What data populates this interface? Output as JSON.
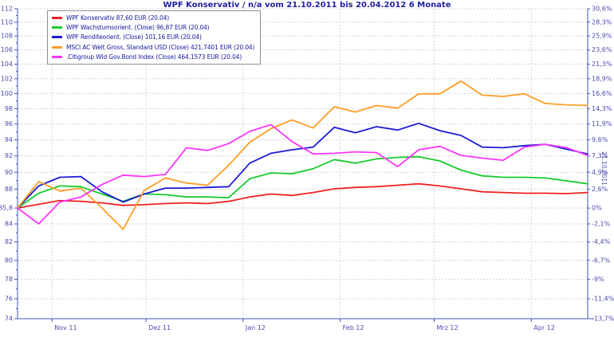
{
  "title": "WPF Konservativ / n/a vom 21.10.2011 bis 20.04.2012 6 Monate",
  "rotated_date_label": "21.10.2011",
  "style": {
    "title_color": "#1f1fa0",
    "axis_color": "#3c50b4",
    "label_color": "#4a4ab0",
    "grid_color": "#d4d4d4",
    "legend_text_color": "#16169b",
    "background": "#ffffff"
  },
  "chart_data": {
    "type": "line",
    "title": "WPF Konservativ / n/a vom 21.10.2011 bis 20.04.2012 6 Monate",
    "start_date": "21.10.2011",
    "end_date": "20.04.2012",
    "period_label": "6 Monate",
    "scale": "log",
    "grid": true,
    "legend_position": "top-left",
    "baseline_price": 85.8,
    "ylim_price": [
      74,
      112
    ],
    "y_gridline_prices": [
      112,
      110,
      108,
      106,
      104,
      102,
      100,
      98,
      96,
      94,
      92,
      90,
      88,
      85.8,
      84,
      82,
      80,
      78,
      76,
      74
    ],
    "y_axis_left_labels": [
      "112",
      "110",
      "108",
      "106",
      "104",
      "102",
      "100",
      "98",
      "96",
      "94",
      "92",
      "90",
      "88",
      "85,8",
      "84",
      "82",
      "80",
      "78",
      "76",
      "74"
    ],
    "y_axis_right_labels": [
      "30,6%",
      "28,3%",
      "25,9%",
      "23,6%",
      "21,3%",
      "18,9%",
      "16,6%",
      "14,3%",
      "11,9%",
      "9,6%",
      "7,3%",
      "4,9%",
      "2,6%",
      "0%",
      "-2,1%",
      "-4,4%",
      "-6,7%",
      "-9%",
      "-11,4%",
      "-13,7%"
    ],
    "x_axis": {
      "tick_labels": [
        "Nov 11",
        "Dez 11",
        "Jan 12",
        "Feb 12",
        "Mrz 12",
        "Apr 12"
      ],
      "tick_day_offsets": [
        11,
        41,
        72,
        103,
        133,
        164
      ],
      "total_days": 182
    },
    "series_unit": "percent_change_from_21.10.2011",
    "series": [
      {
        "name": "WPF Konservativ 87,60 EUR (20.04)",
        "color": "#ee2222",
        "end_value_label": "87,60 EUR",
        "values": [
          0,
          0.5,
          1.0,
          0.9,
          0.7,
          0.35,
          0.45,
          0.6,
          0.7,
          0.6,
          0.9,
          1.5,
          1.9,
          1.7,
          2.1,
          2.6,
          2.8,
          2.9,
          3.1,
          3.3,
          3.0,
          2.6,
          2.2,
          2.1,
          2.0,
          2.0,
          1.95,
          2.1
        ]
      },
      {
        "name": "WPF Wachstumsorient. (Close) 96,87 EUR (20.04)",
        "color": "#17cb2e",
        "end_value_label": "96,87 EUR",
        "values": [
          0,
          2.0,
          3.0,
          2.9,
          1.9,
          0.9,
          1.9,
          1.8,
          1.5,
          1.5,
          1.4,
          4.0,
          4.8,
          4.7,
          5.4,
          6.7,
          6.2,
          6.8,
          7.0,
          7.1,
          6.5,
          5.2,
          4.4,
          4.2,
          4.2,
          4.1,
          3.7,
          3.3
        ]
      },
      {
        "name": "WPF Renditeorient. (Close) 101,16 EUR (20.04)",
        "color": "#1b1bd4",
        "end_value_label": "101,16 EUR",
        "values": [
          0,
          3.0,
          4.2,
          4.3,
          2.2,
          0.8,
          1.9,
          2.7,
          2.7,
          2.8,
          2.9,
          6.2,
          7.6,
          8.1,
          8.5,
          11.4,
          10.6,
          11.5,
          11.0,
          12.0,
          10.9,
          10.2,
          8.5,
          8.4,
          8.7,
          8.9,
          8.2,
          7.5
        ]
      },
      {
        "name": "MSCI AC Welt Gross, Standard USD (Close) 421,7401 EUR (20.04)",
        "color": "#ff9d26",
        "end_value_label": "421,7401 EUR",
        "values": [
          0,
          3.6,
          2.3,
          2.7,
          0.0,
          -2.8,
          2.4,
          4.1,
          3.4,
          3.1,
          5.9,
          9.2,
          11.2,
          12.5,
          11.3,
          14.5,
          13.7,
          14.7,
          14.3,
          16.5,
          16.5,
          18.5,
          16.3,
          16.1,
          16.5,
          15.0,
          14.8,
          14.7
        ]
      },
      {
        "name": ".Citigroup Wld Gov.Bond Index (Close) 464,1573 EUR (20.04)",
        "color": "#fb35fb",
        "end_value_label": "464,1573 EUR",
        "values": [
          0,
          -2.1,
          0.8,
          1.5,
          3.2,
          4.5,
          4.3,
          4.6,
          8.4,
          8.0,
          9.0,
          10.8,
          11.8,
          9.3,
          7.5,
          7.6,
          7.8,
          7.7,
          5.7,
          8.1,
          8.6,
          7.3,
          6.9,
          6.6,
          8.5,
          8.9,
          8.4,
          7.3
        ]
      }
    ]
  }
}
